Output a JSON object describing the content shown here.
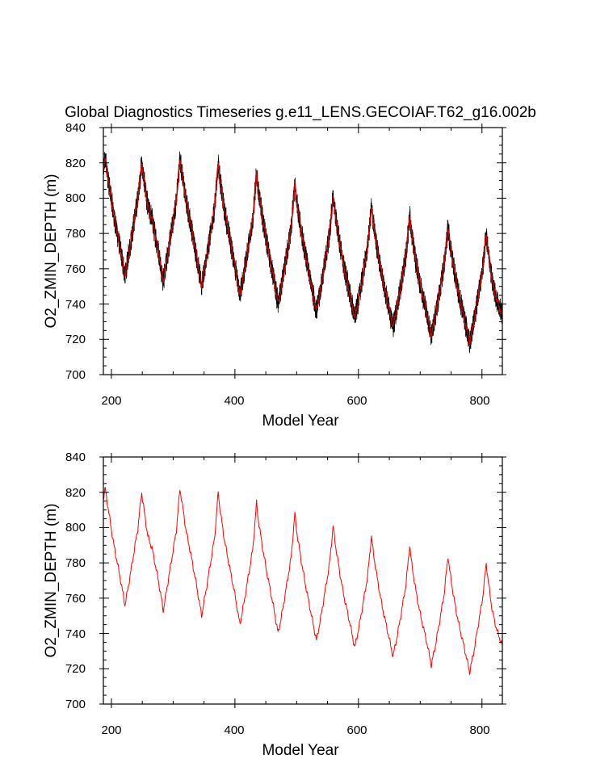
{
  "chart_data": [
    {
      "type": "line",
      "title": "Global Diagnostics Timeseries g.e11_LENS.GECOIAF.T62_g16.002b",
      "xlabel": "Model Year",
      "ylabel": "O2_ZMIN_DEPTH (m)",
      "xlim": [
        187,
        833
      ],
      "ylim": [
        700,
        840
      ],
      "xticks": [
        "200",
        "400",
        "600",
        "800"
      ],
      "yticks": [
        "700",
        "720",
        "740",
        "760",
        "780",
        "800",
        "820",
        "840"
      ],
      "cycle_years": 62,
      "series": [
        {
          "color": "#000000",
          "style": "noisy",
          "x": [
            187,
            190,
            196,
            204,
            214,
            222,
            229,
            236,
            243,
            249,
            252,
            259,
            266,
            276,
            284,
            291,
            298,
            305,
            311,
            314,
            321,
            328,
            338,
            346,
            353,
            360,
            367,
            373,
            376,
            383,
            390,
            400,
            408,
            415,
            422,
            429,
            435,
            438,
            445,
            452,
            462,
            470,
            477,
            484,
            491,
            497,
            500,
            507,
            514,
            524,
            532,
            539,
            546,
            553,
            559,
            562,
            569,
            576,
            586,
            594,
            601,
            608,
            615,
            621,
            624,
            631,
            638,
            648,
            656,
            663,
            670,
            677,
            683,
            686,
            693,
            700,
            710,
            718,
            725,
            732,
            739,
            745,
            748,
            755,
            762,
            772,
            780,
            787,
            794,
            801,
            807,
            810,
            817,
            824,
            833
          ],
          "y": [
            817,
            822,
            808,
            790,
            772,
            756,
            770,
            785,
            800,
            820,
            812,
            795,
            788,
            770,
            753,
            768,
            783,
            798,
            822,
            815,
            798,
            786,
            767,
            750,
            764,
            779,
            794,
            820,
            810,
            793,
            780,
            762,
            745,
            758,
            773,
            788,
            814,
            804,
            788,
            774,
            756,
            740,
            753,
            768,
            783,
            808,
            798,
            782,
            768,
            750,
            736,
            749,
            764,
            779,
            801,
            792,
            776,
            762,
            746,
            732,
            744,
            758,
            773,
            795,
            786,
            770,
            756,
            740,
            727,
            739,
            753,
            768,
            790,
            780,
            764,
            751,
            736,
            722,
            734,
            748,
            763,
            784,
            775,
            759,
            746,
            731,
            718,
            730,
            745,
            760,
            780,
            770,
            752,
            742,
            733
          ]
        },
        {
          "color": "#cc0000",
          "style": "smooth",
          "x": [
            187,
            190,
            196,
            204,
            214,
            222,
            229,
            236,
            243,
            249,
            252,
            259,
            266,
            276,
            284,
            291,
            298,
            305,
            311,
            314,
            321,
            328,
            338,
            346,
            353,
            360,
            367,
            373,
            376,
            383,
            390,
            400,
            408,
            415,
            422,
            429,
            435,
            438,
            445,
            452,
            462,
            470,
            477,
            484,
            491,
            497,
            500,
            507,
            514,
            524,
            532,
            539,
            546,
            553,
            559,
            562,
            569,
            576,
            586,
            594,
            601,
            608,
            615,
            621,
            624,
            631,
            638,
            648,
            656,
            663,
            670,
            677,
            683,
            686,
            693,
            700,
            710,
            718,
            725,
            732,
            739,
            745,
            748,
            755,
            762,
            772,
            780,
            787,
            794,
            801,
            807,
            810,
            817,
            824,
            833
          ],
          "y": [
            817,
            822,
            808,
            790,
            772,
            756,
            770,
            785,
            800,
            820,
            812,
            795,
            788,
            770,
            753,
            768,
            783,
            798,
            822,
            815,
            798,
            786,
            767,
            750,
            764,
            779,
            794,
            820,
            810,
            793,
            780,
            762,
            745,
            758,
            773,
            788,
            814,
            804,
            788,
            774,
            756,
            740,
            753,
            768,
            783,
            808,
            798,
            782,
            768,
            750,
            736,
            749,
            764,
            779,
            801,
            792,
            776,
            762,
            746,
            732,
            744,
            758,
            773,
            795,
            786,
            770,
            756,
            740,
            727,
            739,
            753,
            768,
            790,
            780,
            764,
            751,
            736,
            722,
            734,
            748,
            763,
            784,
            775,
            759,
            746,
            731,
            718,
            730,
            745,
            760,
            780,
            770,
            752,
            742,
            733
          ]
        }
      ]
    },
    {
      "type": "line",
      "xlabel": "Model Year",
      "ylabel": "O2_ZMIN_DEPTH (m)",
      "xlim": [
        187,
        833
      ],
      "ylim": [
        700,
        840
      ],
      "xticks": [
        "200",
        "400",
        "600",
        "800"
      ],
      "yticks": [
        "700",
        "720",
        "740",
        "760",
        "780",
        "800",
        "820",
        "840"
      ],
      "cycle_years": 62,
      "series": [
        {
          "color": "#ff0000",
          "style": "smooth",
          "x": [
            187,
            190,
            196,
            204,
            214,
            222,
            229,
            236,
            243,
            249,
            252,
            259,
            266,
            276,
            284,
            291,
            298,
            305,
            311,
            314,
            321,
            328,
            338,
            346,
            353,
            360,
            367,
            373,
            376,
            383,
            390,
            400,
            408,
            415,
            422,
            429,
            435,
            438,
            445,
            452,
            462,
            470,
            477,
            484,
            491,
            497,
            500,
            507,
            514,
            524,
            532,
            539,
            546,
            553,
            559,
            562,
            569,
            576,
            586,
            594,
            601,
            608,
            615,
            621,
            624,
            631,
            638,
            648,
            656,
            663,
            670,
            677,
            683,
            686,
            693,
            700,
            710,
            718,
            725,
            732,
            739,
            745,
            748,
            755,
            762,
            772,
            780,
            787,
            794,
            801,
            807,
            810,
            817,
            824,
            833
          ],
          "y": [
            817,
            822,
            808,
            790,
            772,
            756,
            770,
            785,
            800,
            820,
            812,
            795,
            788,
            770,
            753,
            768,
            783,
            798,
            822,
            815,
            798,
            786,
            767,
            750,
            764,
            779,
            794,
            820,
            810,
            793,
            780,
            762,
            745,
            758,
            773,
            788,
            814,
            804,
            788,
            774,
            756,
            740,
            753,
            768,
            783,
            808,
            798,
            782,
            768,
            750,
            736,
            749,
            764,
            779,
            801,
            792,
            776,
            762,
            746,
            732,
            744,
            758,
            773,
            795,
            786,
            770,
            756,
            740,
            727,
            739,
            753,
            768,
            790,
            780,
            764,
            751,
            736,
            722,
            734,
            748,
            763,
            784,
            775,
            759,
            746,
            731,
            718,
            730,
            745,
            760,
            780,
            770,
            752,
            742,
            733
          ]
        }
      ]
    }
  ]
}
